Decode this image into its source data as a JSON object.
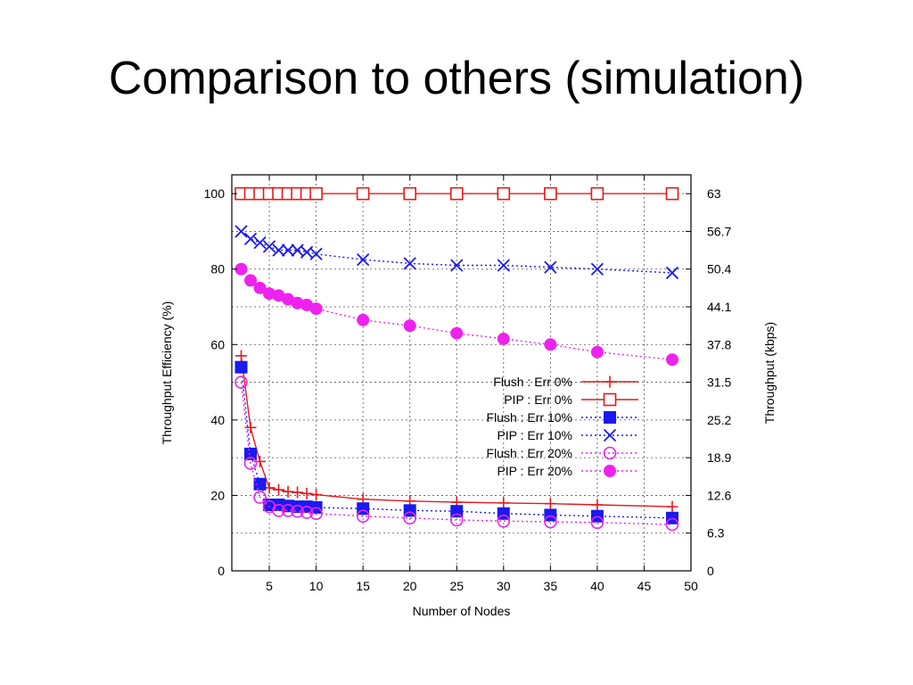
{
  "slide": {
    "title": "Comparison to others (simulation)"
  },
  "colors": {
    "red": "#e41a1c",
    "blue": "#1a1aee",
    "magenta": "#ee22ee",
    "grid": "#555555"
  },
  "chart_data": {
    "type": "line",
    "title": "",
    "xlabel": "Number of Nodes",
    "ylabel": "Throughput Efficiency (%)",
    "y2label": "Throughput (kbps)",
    "xlim": [
      1,
      50
    ],
    "ylim": [
      0,
      105
    ],
    "y2lim": [
      0,
      66.15
    ],
    "xticks": [
      5,
      10,
      15,
      20,
      25,
      30,
      35,
      40,
      45,
      50
    ],
    "yticks": [
      0,
      20,
      40,
      60,
      80,
      100
    ],
    "y2ticks": [
      "0",
      "6.3",
      "12.6",
      "18.9",
      "25.2",
      "31.5",
      "37.8",
      "44.1",
      "50.4",
      "56.7",
      "63"
    ],
    "grid": true,
    "legend_position": "center-right",
    "series": [
      {
        "name": "Flush : Err 0%",
        "color": "#e41a1c",
        "line": "solid",
        "marker": "plus",
        "x": [
          2,
          3,
          4,
          5,
          6,
          7,
          8,
          9,
          10,
          15,
          20,
          25,
          30,
          35,
          40,
          48
        ],
        "y": [
          57,
          38,
          29,
          22,
          21.5,
          21,
          20.8,
          20.5,
          20.2,
          19,
          18.5,
          18.2,
          18,
          17.8,
          17.5,
          17
        ]
      },
      {
        "name": "PIP : Err 0%",
        "color": "#e41a1c",
        "line": "solid",
        "marker": "square-open",
        "x": [
          2,
          3,
          4,
          5,
          6,
          7,
          8,
          9,
          10,
          15,
          20,
          25,
          30,
          35,
          40,
          48
        ],
        "y": [
          100,
          100,
          100,
          100,
          100,
          100,
          100,
          100,
          100,
          100,
          100,
          100,
          100,
          100,
          100,
          100
        ]
      },
      {
        "name": "Flush : Err 10%",
        "color": "#1a1aee",
        "line": "dotted",
        "marker": "square-filled",
        "x": [
          2,
          3,
          4,
          5,
          6,
          7,
          8,
          9,
          10,
          15,
          20,
          25,
          30,
          35,
          40,
          48
        ],
        "y": [
          54,
          31,
          23,
          17.5,
          17.5,
          17.2,
          17,
          17,
          16.8,
          16.5,
          16,
          15.8,
          15.2,
          14.8,
          14.5,
          14
        ]
      },
      {
        "name": "PIP : Err 10%",
        "color": "#1a1aee",
        "line": "dotted",
        "marker": "x",
        "x": [
          2,
          3,
          4,
          5,
          6,
          7,
          8,
          9,
          10,
          15,
          20,
          25,
          30,
          35,
          40,
          48
        ],
        "y": [
          90,
          88,
          87,
          86,
          85,
          85,
          85,
          84.5,
          84,
          82.5,
          81.5,
          81,
          81,
          80.5,
          80,
          79
        ]
      },
      {
        "name": "Flush : Err 20%",
        "color": "#ee22ee",
        "line": "dotted",
        "marker": "circle-open",
        "x": [
          2,
          3,
          4,
          5,
          6,
          7,
          8,
          9,
          10,
          15,
          20,
          25,
          30,
          35,
          40,
          48
        ],
        "y": [
          50,
          28.5,
          19.5,
          17,
          16,
          16,
          15.8,
          15.5,
          15.2,
          14.5,
          14,
          13.5,
          13.2,
          13,
          12.8,
          12.3
        ]
      },
      {
        "name": "PIP : Err 20%",
        "color": "#ee22ee",
        "line": "dotted",
        "marker": "circle-filled",
        "x": [
          2,
          3,
          4,
          5,
          6,
          7,
          8,
          9,
          10,
          15,
          20,
          25,
          30,
          35,
          40,
          48
        ],
        "y": [
          80,
          77,
          75,
          73.5,
          73,
          72,
          71,
          70.5,
          69.5,
          66.5,
          65,
          63,
          61.5,
          60,
          58,
          56
        ]
      }
    ]
  }
}
